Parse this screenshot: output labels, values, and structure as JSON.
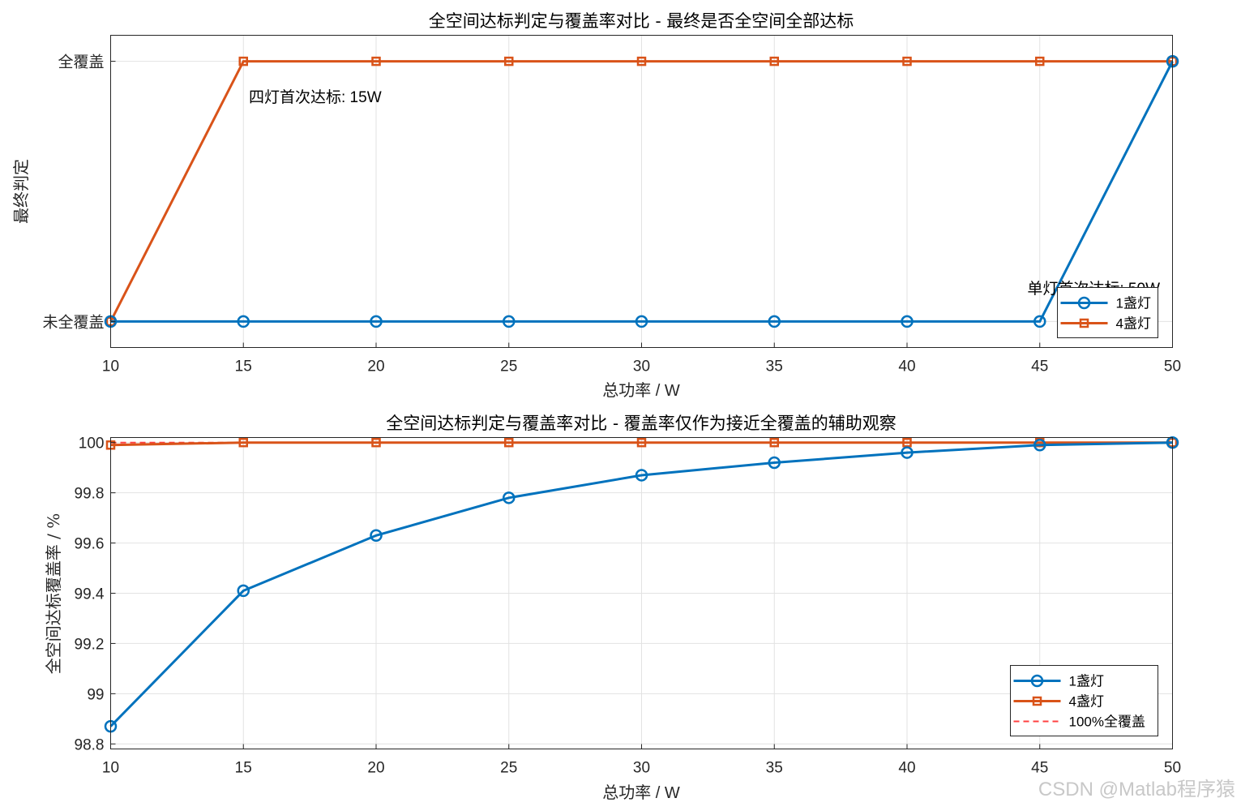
{
  "chart_data": [
    {
      "type": "line",
      "title": "全空间达标判定与覆盖率对比 - 最终是否全空间全部达标",
      "xlabel": "总功率 / W",
      "ylabel": "最终判定",
      "x": [
        10,
        15,
        20,
        25,
        30,
        35,
        40,
        45,
        50
      ],
      "xlim": [
        10,
        50
      ],
      "ylim": [
        -0.1,
        1.1
      ],
      "yticks": [
        0,
        1
      ],
      "yticklabels": [
        "未全覆盖",
        "全覆盖"
      ],
      "grid": true,
      "legend_position": "bottom-right",
      "series": [
        {
          "name": "1盏灯",
          "color": "#0072BD",
          "marker": "circle",
          "values": [
            0,
            0,
            0,
            0,
            0,
            0,
            0,
            0,
            1
          ]
        },
        {
          "name": "4盏灯",
          "color": "#D95319",
          "marker": "square",
          "values": [
            0,
            1,
            1,
            1,
            1,
            1,
            1,
            1,
            1
          ]
        }
      ],
      "annotations": [
        {
          "text": "四灯首次达标: 15W",
          "x": 15,
          "y": 0.86
        },
        {
          "text": "单灯首次达标: 50W",
          "x": 50,
          "y": 0.13
        }
      ]
    },
    {
      "type": "line",
      "title": "全空间达标判定与覆盖率对比 - 覆盖率仅作为接近全覆盖的辅助观察",
      "xlabel": "总功率 / W",
      "ylabel": "全空间达标覆盖率 / %",
      "x": [
        10,
        15,
        20,
        25,
        30,
        35,
        40,
        45,
        50
      ],
      "xlim": [
        10,
        50
      ],
      "ylim": [
        98.78,
        100.02
      ],
      "yticks": [
        98.8,
        99,
        99.2,
        99.4,
        99.6,
        99.8,
        100
      ],
      "grid": true,
      "legend_position": "bottom-right",
      "series": [
        {
          "name": "1盏灯",
          "color": "#0072BD",
          "marker": "circle",
          "values": [
            98.87,
            99.41,
            99.63,
            99.78,
            99.87,
            99.92,
            99.96,
            99.99,
            100
          ]
        },
        {
          "name": "4盏灯",
          "color": "#D95319",
          "marker": "square",
          "values": [
            99.99,
            100,
            100,
            100,
            100,
            100,
            100,
            100,
            100
          ]
        },
        {
          "name": "100%全覆盖",
          "color": "#FF4040",
          "style": "dashed",
          "values": [
            100,
            100,
            100,
            100,
            100,
            100,
            100,
            100,
            100
          ]
        }
      ]
    }
  ],
  "watermark": "CSDN @Matlab程序猿"
}
